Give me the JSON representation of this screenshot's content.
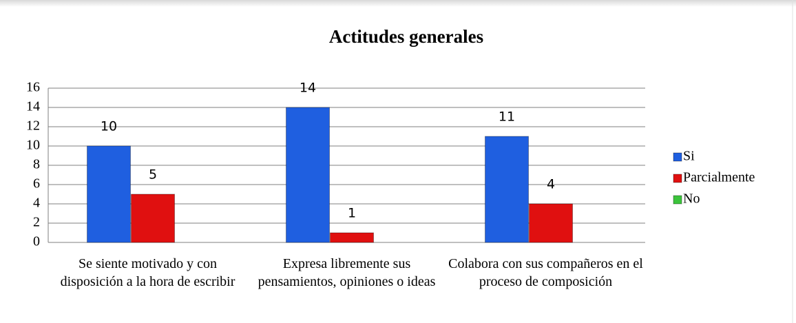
{
  "chart_data": {
    "type": "bar",
    "title": "Actitudes generales",
    "categories": [
      "Se siente motivado y con disposición a la hora de escribir",
      "Expresa libremente sus pensamientos, opiniones o ideas",
      "Colabora con sus compañeros en el proceso de composición"
    ],
    "series": [
      {
        "name": "Si",
        "color": "#1f5fe0",
        "values": [
          10,
          14,
          11
        ]
      },
      {
        "name": "Parcialmente",
        "color": "#e01010",
        "values": [
          5,
          1,
          4
        ]
      },
      {
        "name": "No",
        "color": "#3cc43c",
        "values": [
          0,
          0,
          0
        ]
      }
    ],
    "ylim": [
      0,
      16
    ],
    "yticks": [
      0,
      2,
      4,
      6,
      8,
      10,
      12,
      14,
      16
    ],
    "grid": true,
    "legend": "right"
  }
}
